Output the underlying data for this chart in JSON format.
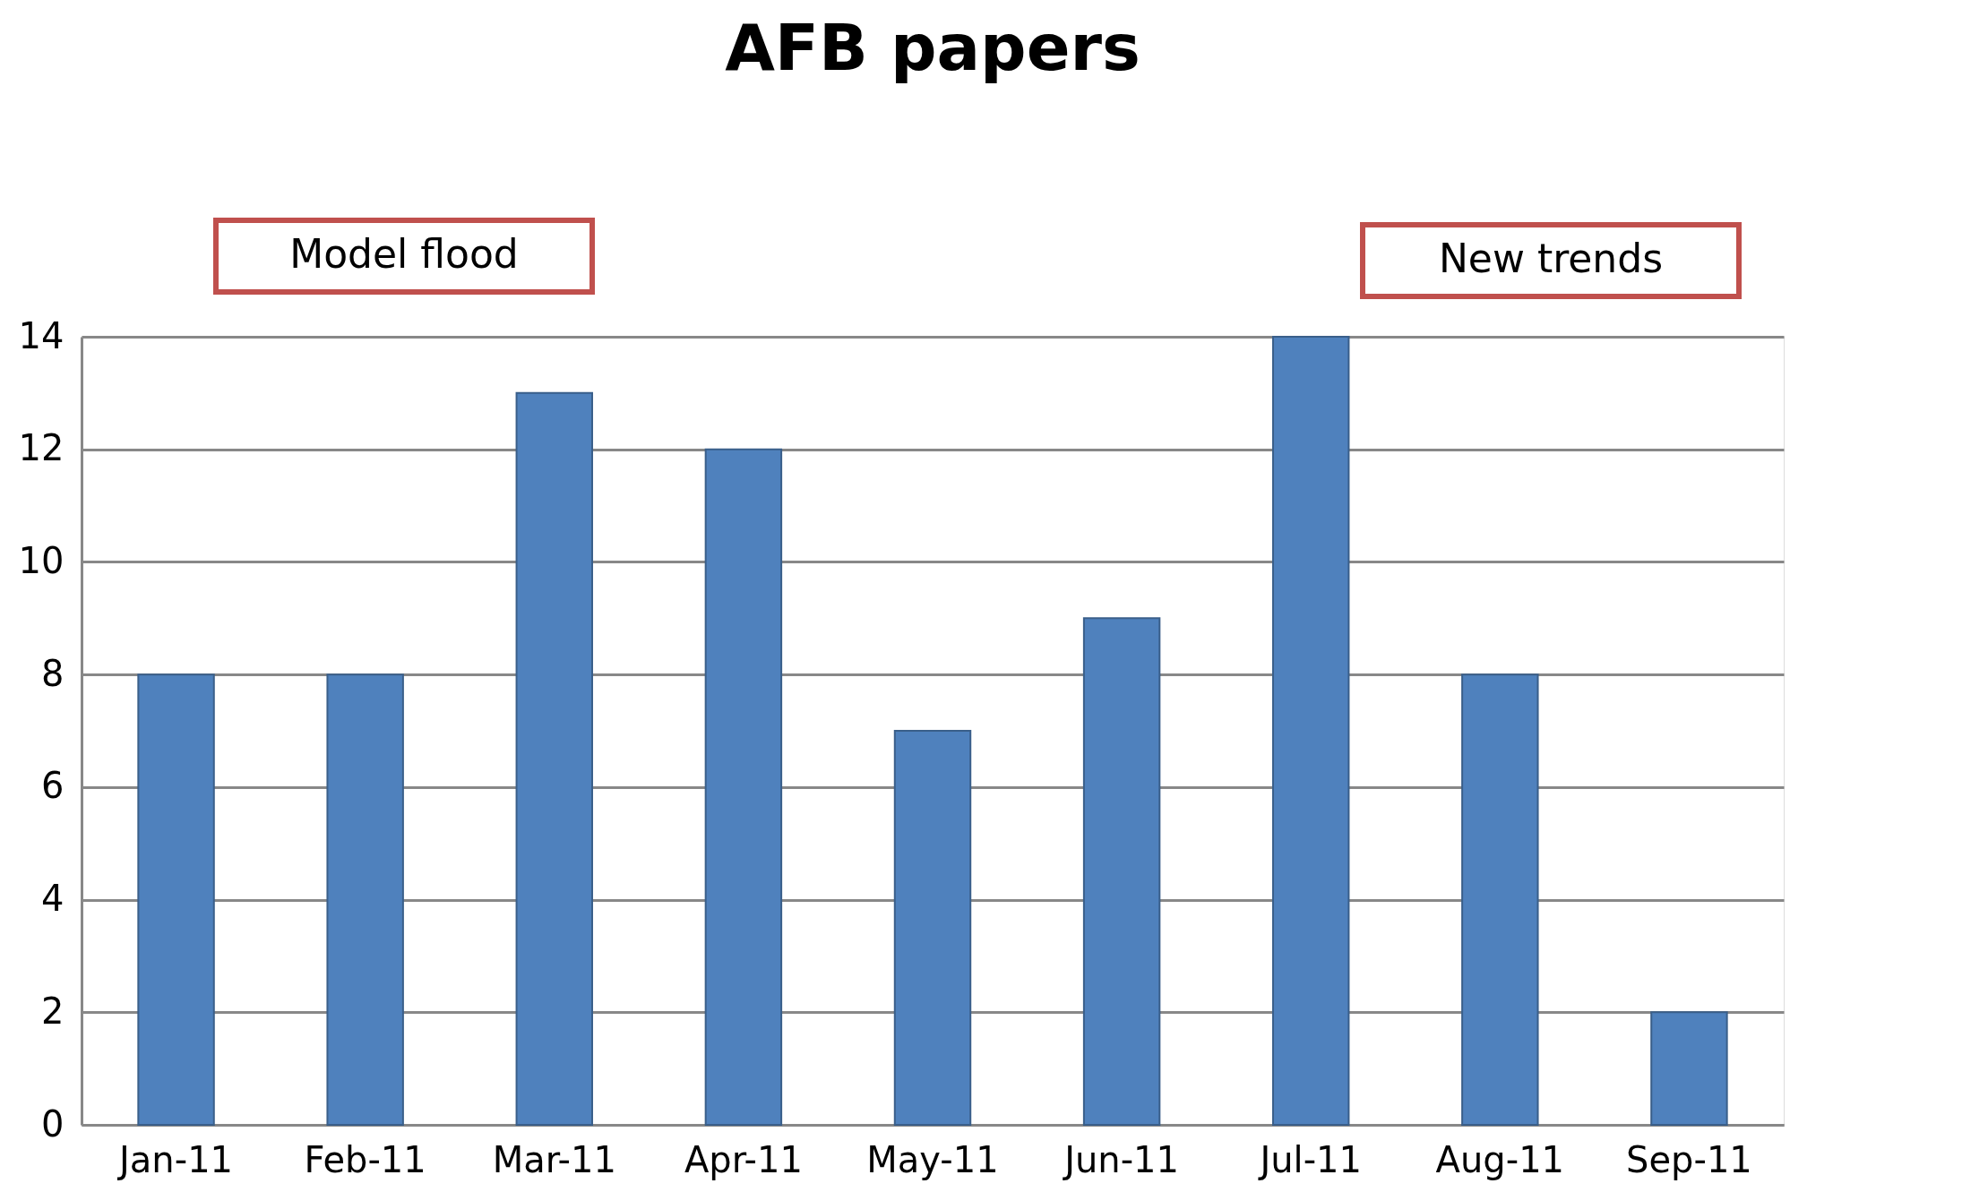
{
  "chart_data": {
    "type": "bar",
    "title": "AFB papers",
    "categories": [
      "Jan-11",
      "Feb-11",
      "Mar-11",
      "Apr-11",
      "May-11",
      "Jun-11",
      "Jul-11",
      "Aug-11",
      "Sep-11"
    ],
    "values": [
      8,
      8,
      13,
      12,
      7,
      9,
      14,
      8,
      2
    ],
    "color": "#4f81bd",
    "ylim": [
      0,
      14
    ],
    "yticks": [
      0,
      2,
      4,
      6,
      8,
      10,
      12,
      14
    ],
    "grid": "y",
    "annotations": [
      "Model flood",
      "New trends"
    ]
  }
}
